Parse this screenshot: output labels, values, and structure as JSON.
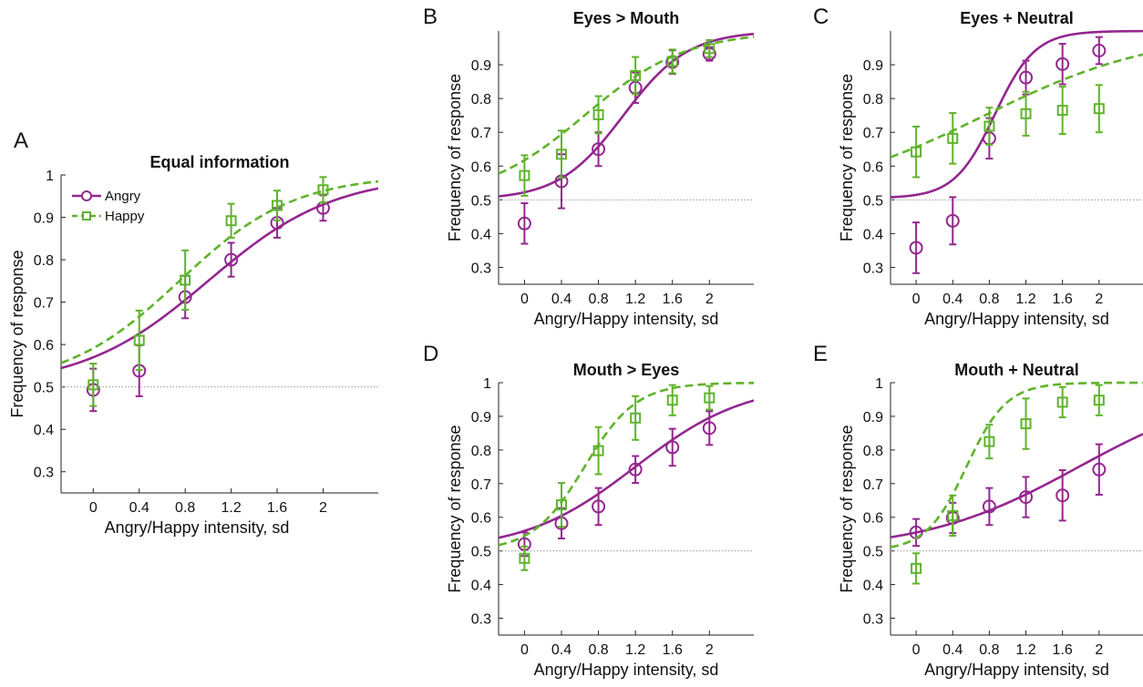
{
  "chart_data": [
    {
      "panel": "A",
      "type": "line",
      "title": "Equal information",
      "xlabel": "Angry/Happy intensity, sd",
      "ylabel": "Frequency of response",
      "x_ticks": [
        "0",
        "0.4",
        "0.8",
        "1.2",
        "1.6",
        "2"
      ],
      "y_ticks": [
        "0.3",
        "0.4",
        "0.5",
        "0.6",
        "0.7",
        "0.8",
        "0.9",
        "1"
      ],
      "xlim": [
        -0.28,
        2.48
      ],
      "ylim": [
        0.25,
        1.0
      ],
      "chance_level": 0.5,
      "legend": {
        "position": "top-left",
        "entries": [
          "Angry",
          "Happy"
        ]
      },
      "series": [
        {
          "name": "Angry",
          "color": "#93278f",
          "marker": "circle",
          "line": "solid",
          "x": [
            0,
            0.4,
            0.8,
            1.2,
            1.6,
            2
          ],
          "values": [
            0.493,
            0.538,
            0.712,
            0.8,
            0.887,
            0.922
          ],
          "err": [
            0.05,
            0.06,
            0.05,
            0.04,
            0.035,
            0.03
          ],
          "fit": {
            "lower": 0.5,
            "mu": 1.0,
            "s": 0.55
          }
        },
        {
          "name": "Happy",
          "color": "#5fb32b",
          "marker": "square",
          "line": "dashed",
          "x": [
            0,
            0.4,
            0.8,
            1.2,
            1.6,
            2
          ],
          "values": [
            0.505,
            0.61,
            0.752,
            0.892,
            0.928,
            0.965
          ],
          "err": [
            0.05,
            0.07,
            0.07,
            0.04,
            0.035,
            0.03
          ],
          "fit": {
            "lower": 0.5,
            "mu": 0.75,
            "s": 0.5
          }
        }
      ]
    },
    {
      "panel": "B",
      "type": "line",
      "title": "Eyes > Mouth",
      "xlabel": "Angry/Happy intensity, sd",
      "ylabel": "Frequency of response",
      "x_ticks": [
        "0",
        "0.4",
        "0.8",
        "1.2",
        "1.6",
        "2"
      ],
      "y_ticks": [
        "0.3",
        "0.4",
        "0.5",
        "0.6",
        "0.7",
        "0.8",
        "0.9"
      ],
      "xlim": [
        -0.28,
        2.48
      ],
      "ylim": [
        0.25,
        1.0
      ],
      "chance_level": 0.5,
      "series": [
        {
          "name": "Angry",
          "color": "#93278f",
          "marker": "circle",
          "line": "solid",
          "x": [
            0,
            0.4,
            0.8,
            1.2,
            1.6,
            2
          ],
          "values": [
            0.43,
            0.555,
            0.65,
            0.832,
            0.908,
            0.932
          ],
          "err": [
            0.06,
            0.08,
            0.05,
            0.045,
            0.035,
            0.02
          ],
          "fit": {
            "lower": 0.5,
            "mu": 1.07,
            "s": 0.35
          }
        },
        {
          "name": "Happy",
          "color": "#5fb32b",
          "marker": "square",
          "line": "dashed",
          "x": [
            0,
            0.4,
            0.8,
            1.2,
            1.6,
            2
          ],
          "values": [
            0.572,
            0.635,
            0.752,
            0.868,
            0.91,
            0.948
          ],
          "err": [
            0.06,
            0.07,
            0.055,
            0.055,
            0.035,
            0.025
          ],
          "fit": {
            "lower": 0.5,
            "mu": 0.65,
            "s": 0.55
          }
        }
      ]
    },
    {
      "panel": "C",
      "type": "line",
      "title": "Eyes + Neutral",
      "xlabel": "Angry/Happy intensity, sd",
      "ylabel": "Frequency of response",
      "x_ticks": [
        "0",
        "0.4",
        "0.8",
        "1.2",
        "1.6",
        "2"
      ],
      "y_ticks": [
        "0.3",
        "0.4",
        "0.5",
        "0.6",
        "0.7",
        "0.8",
        "0.9"
      ],
      "xlim": [
        -0.28,
        2.48
      ],
      "ylim": [
        0.25,
        1.0
      ],
      "chance_level": 0.5,
      "series": [
        {
          "name": "Angry",
          "color": "#93278f",
          "marker": "circle",
          "line": "solid",
          "x": [
            0,
            0.4,
            0.8,
            1.2,
            1.6,
            2
          ],
          "values": [
            0.358,
            0.438,
            0.682,
            0.862,
            0.902,
            0.942
          ],
          "err": [
            0.075,
            0.07,
            0.06,
            0.05,
            0.06,
            0.04
          ],
          "fit": {
            "lower": 0.505,
            "mu": 0.86,
            "s": 0.22
          }
        },
        {
          "name": "Happy",
          "color": "#5fb32b",
          "marker": "square",
          "line": "dashed",
          "x": [
            0,
            0.4,
            0.8,
            1.2,
            1.6,
            2
          ],
          "values": [
            0.642,
            0.682,
            0.718,
            0.755,
            0.765,
            0.77
          ],
          "err": [
            0.075,
            0.075,
            0.055,
            0.065,
            0.07,
            0.07
          ],
          "fit": {
            "lower": 0.5,
            "mu": 0.75,
            "s": 0.95
          }
        }
      ]
    },
    {
      "panel": "D",
      "type": "line",
      "title": "Mouth > Eyes",
      "xlabel": "Angry/Happy intensity, sd",
      "ylabel": "Frequency of response",
      "x_ticks": [
        "0",
        "0.4",
        "0.8",
        "1.2",
        "1.6",
        "2"
      ],
      "y_ticks": [
        "0.3",
        "0.4",
        "0.5",
        "0.6",
        "0.7",
        "0.8",
        "0.9",
        "1"
      ],
      "xlim": [
        -0.28,
        2.48
      ],
      "ylim": [
        0.25,
        1.0
      ],
      "chance_level": 0.5,
      "series": [
        {
          "name": "Angry",
          "color": "#93278f",
          "marker": "circle",
          "line": "solid",
          "x": [
            0,
            0.4,
            0.8,
            1.2,
            1.6,
            2
          ],
          "values": [
            0.52,
            0.582,
            0.632,
            0.742,
            0.808,
            0.865
          ],
          "err": [
            0.035,
            0.045,
            0.055,
            0.04,
            0.055,
            0.05
          ],
          "fit": {
            "lower": 0.5,
            "mu": 1.2,
            "s": 0.6
          }
        },
        {
          "name": "Happy",
          "color": "#5fb32b",
          "marker": "square",
          "line": "dashed",
          "x": [
            0,
            0.4,
            0.8,
            1.2,
            1.6,
            2
          ],
          "values": [
            0.478,
            0.637,
            0.798,
            0.895,
            0.948,
            0.955
          ],
          "err": [
            0.035,
            0.065,
            0.07,
            0.065,
            0.045,
            0.035
          ],
          "fit": {
            "lower": 0.5,
            "mu": 0.65,
            "s": 0.28
          }
        }
      ]
    },
    {
      "panel": "E",
      "type": "line",
      "title": "Mouth + Neutral",
      "xlabel": "Angry/Happy intensity, sd",
      "ylabel": "Frequency of response",
      "x_ticks": [
        "0",
        "0.4",
        "0.8",
        "1.2",
        "1.6",
        "2"
      ],
      "y_ticks": [
        "0.3",
        "0.4",
        "0.5",
        "0.6",
        "0.7",
        "0.8",
        "0.9",
        "1"
      ],
      "xlim": [
        -0.28,
        2.48
      ],
      "ylim": [
        0.25,
        1.0
      ],
      "chance_level": 0.5,
      "series": [
        {
          "name": "Angry",
          "color": "#93278f",
          "marker": "circle",
          "line": "solid",
          "x": [
            0,
            0.4,
            0.8,
            1.2,
            1.6,
            2
          ],
          "values": [
            0.555,
            0.598,
            0.632,
            0.66,
            0.665,
            0.742
          ],
          "err": [
            0.04,
            0.045,
            0.055,
            0.06,
            0.075,
            0.075
          ],
          "fit": {
            "lower": 0.5,
            "mu": 1.78,
            "s": 0.85
          }
        },
        {
          "name": "Happy",
          "color": "#5fb32b",
          "marker": "square",
          "line": "dashed",
          "x": [
            0,
            0.4,
            0.8,
            1.2,
            1.6,
            2
          ],
          "values": [
            0.448,
            0.605,
            0.825,
            0.878,
            0.942,
            0.948
          ],
          "err": [
            0.045,
            0.06,
            0.05,
            0.075,
            0.045,
            0.045
          ],
          "fit": {
            "lower": 0.5,
            "mu": 0.55,
            "s": 0.22
          }
        }
      ]
    }
  ]
}
